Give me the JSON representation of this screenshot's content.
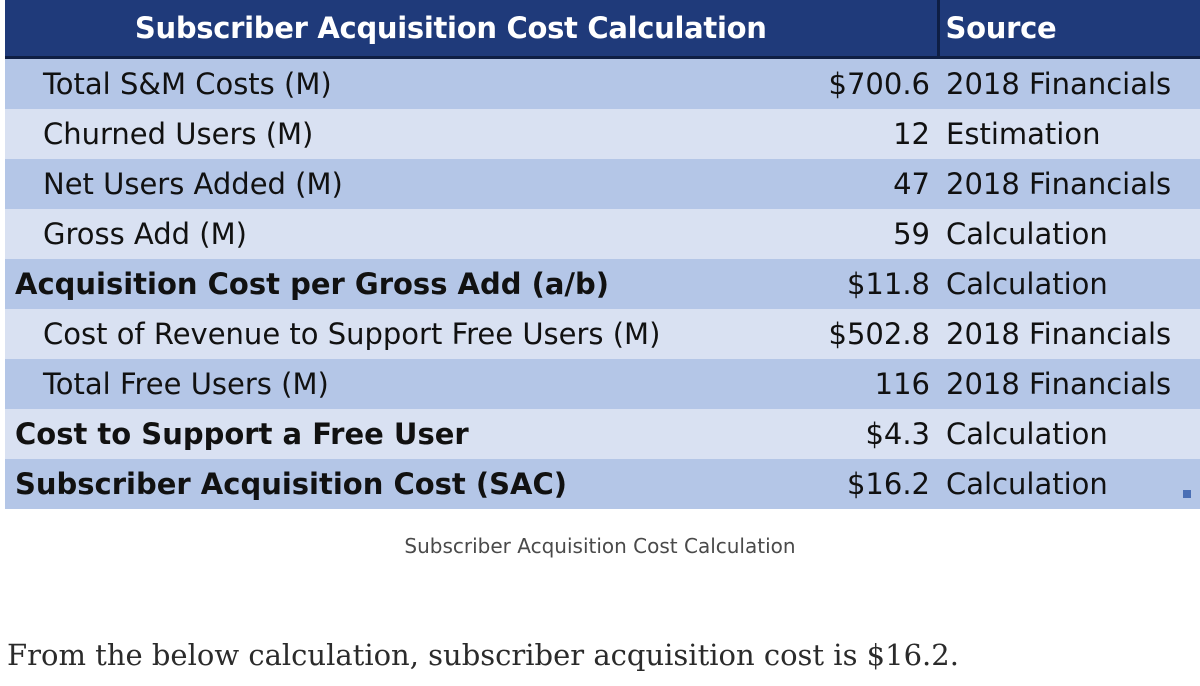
{
  "table": {
    "header": {
      "title": "Subscriber Acquisition Cost Calculation",
      "source": "Source"
    },
    "rows": [
      {
        "label": "Total S&M Costs (M)",
        "value": "$700.6",
        "source": "2018 Financials",
        "bold": false
      },
      {
        "label": "Churned Users (M)",
        "value": "12",
        "source": "Estimation",
        "bold": false
      },
      {
        "label": "Net Users Added (M)",
        "value": "47",
        "source": "2018 Financials",
        "bold": false
      },
      {
        "label": "Gross Add (M)",
        "value": "59",
        "source": "Calculation",
        "bold": false
      },
      {
        "label": "Acquisition Cost per Gross Add (a/b)",
        "value": "$11.8",
        "source": "Calculation",
        "bold": true
      },
      {
        "label": "Cost of Revenue to Support Free Users (M)",
        "value": "$502.8",
        "source": "2018 Financials",
        "bold": false
      },
      {
        "label": "Total Free Users (M)",
        "value": "116",
        "source": "2018 Financials",
        "bold": false
      },
      {
        "label": "Cost to Support a Free User",
        "value": "$4.3",
        "source": "Calculation",
        "bold": true
      },
      {
        "label": "Subscriber Acquisition Cost (SAC)",
        "value": "$16.2",
        "source": "Calculation",
        "bold": true
      }
    ]
  },
  "caption": "Subscriber Acquisition Cost Calculation",
  "body_text": "From the below calculation, subscriber acquisition cost is $16.2.",
  "colors": {
    "header_bg": "#1f3a7a",
    "row_dark": "#b4c6e7",
    "row_light": "#d9e1f2"
  }
}
